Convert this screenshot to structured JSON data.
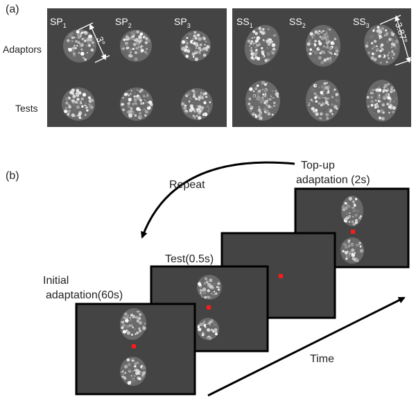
{
  "panel_a": {
    "label": "(a)",
    "row_labels": [
      "Adaptors",
      "Tests"
    ],
    "left_panel": {
      "columns": [
        {
          "base": "SP",
          "sub": "1"
        },
        {
          "base": "SP",
          "sub": "2"
        },
        {
          "base": "SP",
          "sub": "3"
        }
      ],
      "size_annotation": "3°"
    },
    "right_panel": {
      "columns": [
        {
          "base": "SS",
          "sub": "1"
        },
        {
          "base": "SS",
          "sub": "2"
        },
        {
          "base": "SS",
          "sub": "3"
        }
      ],
      "size_annotation": "3.87°"
    }
  },
  "panel_b": {
    "label": "(b)",
    "repeat": "Repeat",
    "topup_line1": "Top-up",
    "topup_line2": "adaptation (2s)",
    "test": "Test(0.5s)",
    "initial_line1": "Initial",
    "initial_line2": "adaptation(60s)",
    "time": "Time"
  },
  "colors": {
    "stimulus_background": "#444444",
    "fixation": "#ff1a1a",
    "frame_border": "#000000",
    "figure_background": "#ffffff"
  }
}
